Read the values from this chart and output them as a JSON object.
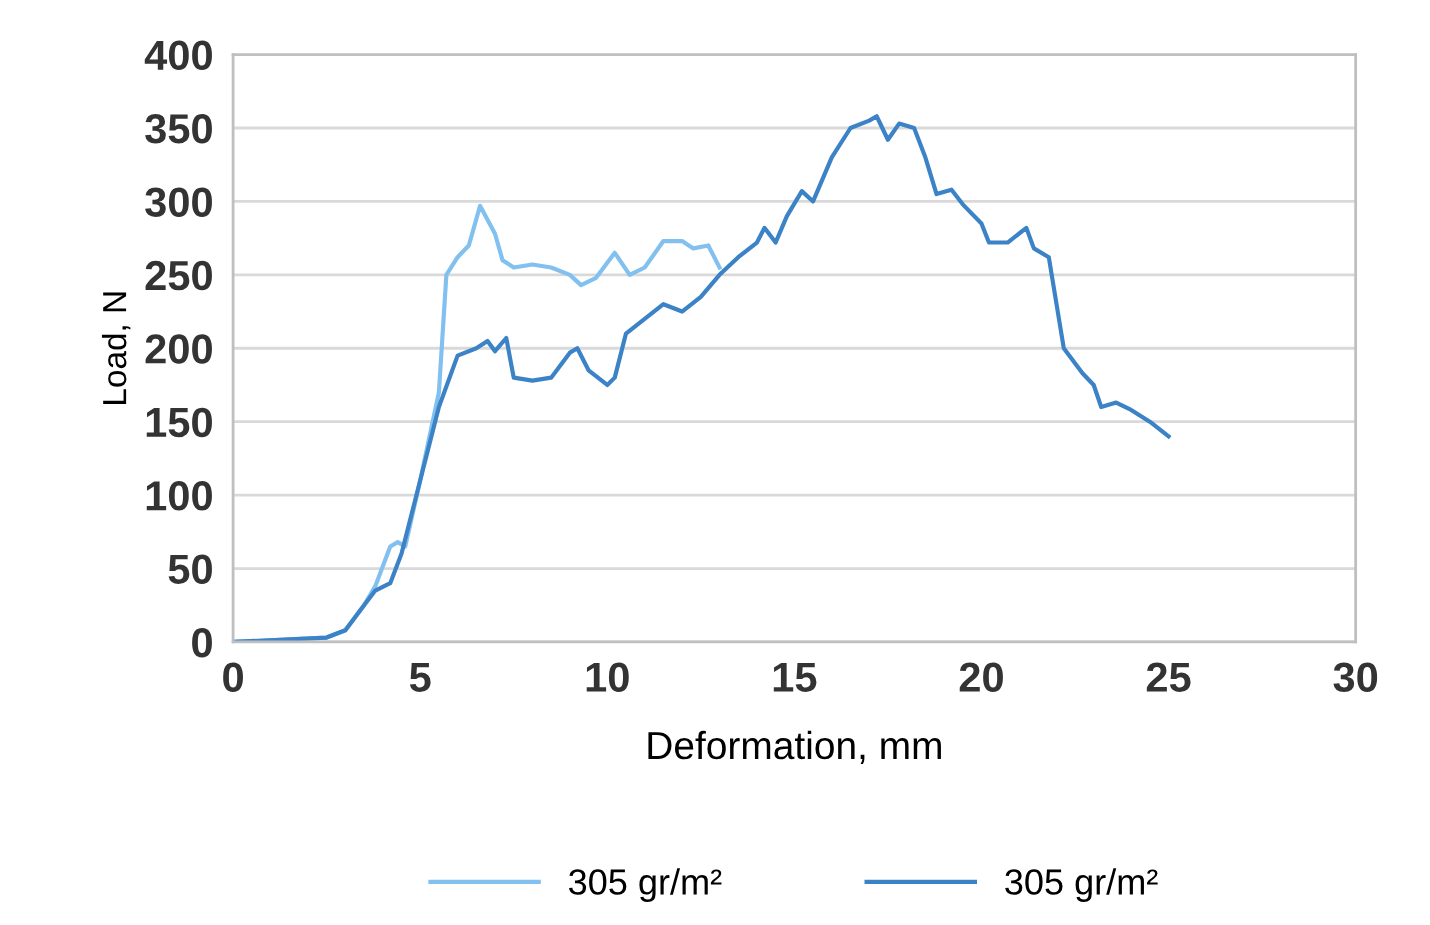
{
  "chart_data": {
    "type": "line",
    "xlabel": "Deformation, mm",
    "ylabel": "Load, N",
    "xlim": [
      0,
      30
    ],
    "xticks": [
      0,
      5,
      10,
      15,
      20,
      25,
      30
    ],
    "ylim": [
      0,
      400
    ],
    "yticks": [
      0,
      50,
      100,
      150,
      200,
      250,
      300,
      350,
      400
    ],
    "grid": "y",
    "legend": "bottom",
    "marker": "none",
    "line_style": "solid",
    "series": [
      {
        "name": "305 gr/m²",
        "color": "#82c1ef",
        "x": [
          0,
          2.5,
          3,
          3.5,
          3.8,
          4.2,
          4.4,
          4.6,
          5,
          5.5,
          5.7,
          6,
          6.3,
          6.6,
          7,
          7.2,
          7.5,
          8,
          8.5,
          9,
          9.3,
          9.7,
          10.2,
          10.6,
          11,
          11.5,
          12,
          12.3,
          12.7,
          13
        ],
        "values": [
          0,
          3,
          8,
          25,
          38,
          65,
          68,
          65,
          110,
          170,
          250,
          262,
          270,
          297,
          278,
          260,
          255,
          257,
          255,
          250,
          243,
          248,
          265,
          250,
          255,
          273,
          273,
          268,
          270,
          255
        ]
      },
      {
        "name": "305 gr/m²",
        "color": "#3c82c6",
        "x": [
          0,
          2.5,
          3,
          3.5,
          3.8,
          4.2,
          4.5,
          5,
          5.5,
          6,
          6.5,
          6.8,
          7,
          7.3,
          7.5,
          8,
          8.5,
          9,
          9.2,
          9.5,
          10,
          10.2,
          10.5,
          11,
          11.5,
          12,
          12.5,
          13,
          13.5,
          14,
          14.2,
          14.5,
          14.8,
          15.2,
          15.5,
          16,
          16.5,
          17,
          17.2,
          17.5,
          17.8,
          18.2,
          18.5,
          18.8,
          19.2,
          19.5,
          20,
          20.2,
          20.7,
          21.2,
          21.4,
          21.8,
          22.2,
          22.7,
          23,
          23.2,
          23.6,
          24,
          24.5,
          25
        ],
        "values": [
          0,
          3,
          8,
          25,
          35,
          40,
          60,
          110,
          160,
          195,
          200,
          205,
          198,
          207,
          180,
          178,
          180,
          197,
          200,
          185,
          175,
          180,
          210,
          220,
          230,
          225,
          235,
          250,
          262,
          272,
          282,
          272,
          290,
          307,
          300,
          330,
          350,
          355,
          358,
          342,
          353,
          350,
          330,
          305,
          308,
          298,
          285,
          272,
          272,
          282,
          268,
          262,
          200,
          183,
          175,
          160,
          163,
          158,
          150,
          140
        ]
      }
    ]
  }
}
